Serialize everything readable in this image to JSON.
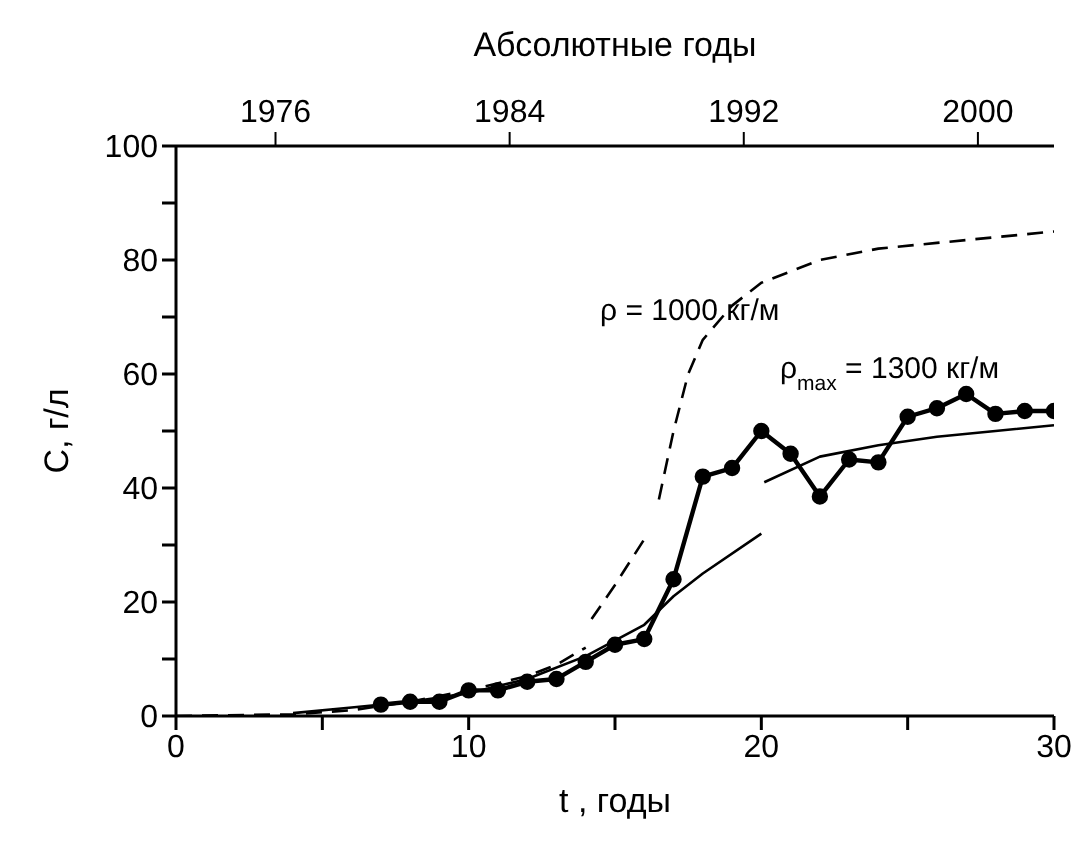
{
  "chart_data": {
    "type": "line",
    "title": "Абсолютные годы",
    "xlabel": "t , годы",
    "ylabel": "C, г/л",
    "xlim": [
      0,
      30
    ],
    "xticks": [
      0,
      {
        "value": 5,
        "label": null
      },
      10,
      {
        "value": 15,
        "label": null
      },
      20,
      {
        "value": 25,
        "label": null
      },
      30
    ],
    "ylim": [
      0,
      100
    ],
    "yticks": [
      0,
      {
        "value": 10,
        "label": null
      },
      20,
      {
        "value": 30,
        "label": null
      },
      40,
      {
        "value": 50,
        "label": null
      },
      60,
      {
        "value": 70,
        "label": null
      },
      80,
      {
        "value": 90,
        "label": null
      },
      100
    ],
    "x2lim": [
      1972.6,
      2002.6
    ],
    "x2ticks": [
      1976,
      1984,
      1992,
      2000
    ],
    "series": [
      {
        "color": "#000000",
        "marker": "circle",
        "line_style": "solid",
        "x": [
          7,
          8,
          9,
          10,
          11,
          12,
          13,
          14,
          15,
          16,
          17,
          18,
          19,
          20,
          21,
          22,
          23,
          24,
          25,
          26,
          27,
          28,
          29,
          30
        ],
        "values": [
          2,
          2.5,
          2.5,
          4.5,
          4.5,
          6,
          6.5,
          9.5,
          12.5,
          13.5,
          24,
          42,
          43.5,
          50,
          46,
          38.5,
          45,
          44.5,
          52.5,
          54,
          56.5,
          53,
          53.5,
          53.5
        ]
      },
      {
        "color": "#000000",
        "marker": "none",
        "line_style": "dashed",
        "x": [
          0,
          4,
          6,
          8,
          10,
          12,
          13,
          14,
          14.1,
          14.2,
          15,
          15.5,
          16,
          16.2,
          16.5,
          17,
          17.5,
          18,
          19,
          20,
          22,
          24,
          26,
          28,
          30
        ],
        "values": [
          0,
          0.3,
          1,
          2.5,
          4.5,
          7,
          9,
          12,
          null,
          17,
          23,
          27,
          31,
          null,
          38,
          50,
          60,
          66,
          72,
          76,
          80,
          82,
          83,
          84,
          85
        ]
      },
      {
        "color": "#000000",
        "marker": "none",
        "line_style": "solid",
        "x": [
          4,
          6,
          8,
          10,
          12,
          14,
          16,
          17,
          18,
          20
        ],
        "values": [
          0.5,
          1.5,
          2.5,
          4,
          6.5,
          10.5,
          16,
          21,
          25,
          32
        ]
      },
      {
        "color": "#000000",
        "marker": "none",
        "line_style": "solid",
        "x": [
          20.1,
          22,
          24,
          26,
          28,
          30
        ],
        "values": [
          41,
          45.5,
          47.5,
          49,
          50,
          51
        ]
      }
    ],
    "annotations": [
      "ρ = 1000 кг/м",
      "ρ$_{max}$ = 1300 кг/м"
    ]
  }
}
